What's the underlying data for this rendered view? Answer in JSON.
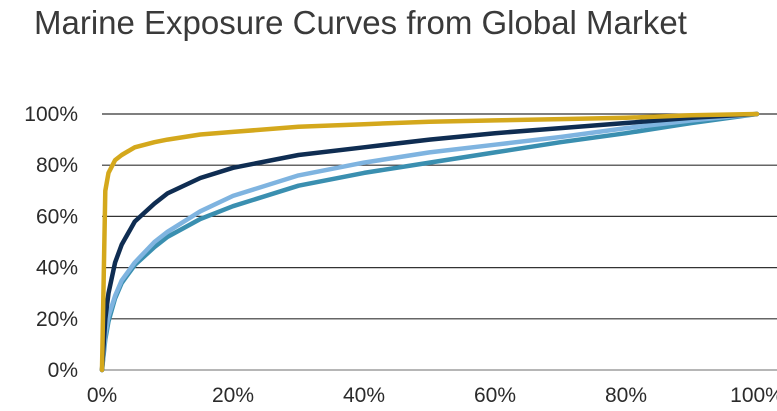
{
  "chart_data": {
    "type": "line",
    "title": "Marine Exposure Curves from Global Market",
    "xlabel": "",
    "ylabel": "",
    "xlim": [
      0,
      1
    ],
    "ylim": [
      0,
      1
    ],
    "x_ticks": [
      "0%",
      "20%",
      "40%",
      "60%",
      "80%",
      "100%"
    ],
    "y_ticks": [
      "0%",
      "20%",
      "40%",
      "60%",
      "80%",
      "100%"
    ],
    "grid": "horizontal",
    "legend": "none",
    "x": [
      0,
      0.005,
      0.01,
      0.02,
      0.03,
      0.05,
      0.08,
      0.1,
      0.15,
      0.2,
      0.3,
      0.4,
      0.5,
      0.6,
      0.7,
      0.8,
      0.9,
      1.0
    ],
    "series": [
      {
        "color": "#d4a81c",
        "values": [
          0,
          0.7,
          0.77,
          0.82,
          0.84,
          0.87,
          0.89,
          0.9,
          0.92,
          0.93,
          0.95,
          0.96,
          0.97,
          0.975,
          0.98,
          0.985,
          0.995,
          1.0
        ]
      },
      {
        "color": "#0f2d52",
        "values": [
          0,
          0.2,
          0.3,
          0.42,
          0.49,
          0.58,
          0.65,
          0.69,
          0.75,
          0.79,
          0.84,
          0.87,
          0.9,
          0.925,
          0.945,
          0.965,
          0.985,
          1.0
        ]
      },
      {
        "color": "#7fb4e0",
        "values": [
          0,
          0.14,
          0.21,
          0.29,
          0.35,
          0.42,
          0.5,
          0.54,
          0.62,
          0.68,
          0.76,
          0.81,
          0.85,
          0.88,
          0.91,
          0.945,
          0.975,
          1.0
        ]
      },
      {
        "color": "#3a8fb0",
        "values": [
          0,
          0.12,
          0.19,
          0.28,
          0.34,
          0.41,
          0.48,
          0.52,
          0.59,
          0.64,
          0.72,
          0.77,
          0.81,
          0.85,
          0.89,
          0.925,
          0.965,
          1.0
        ]
      }
    ]
  }
}
